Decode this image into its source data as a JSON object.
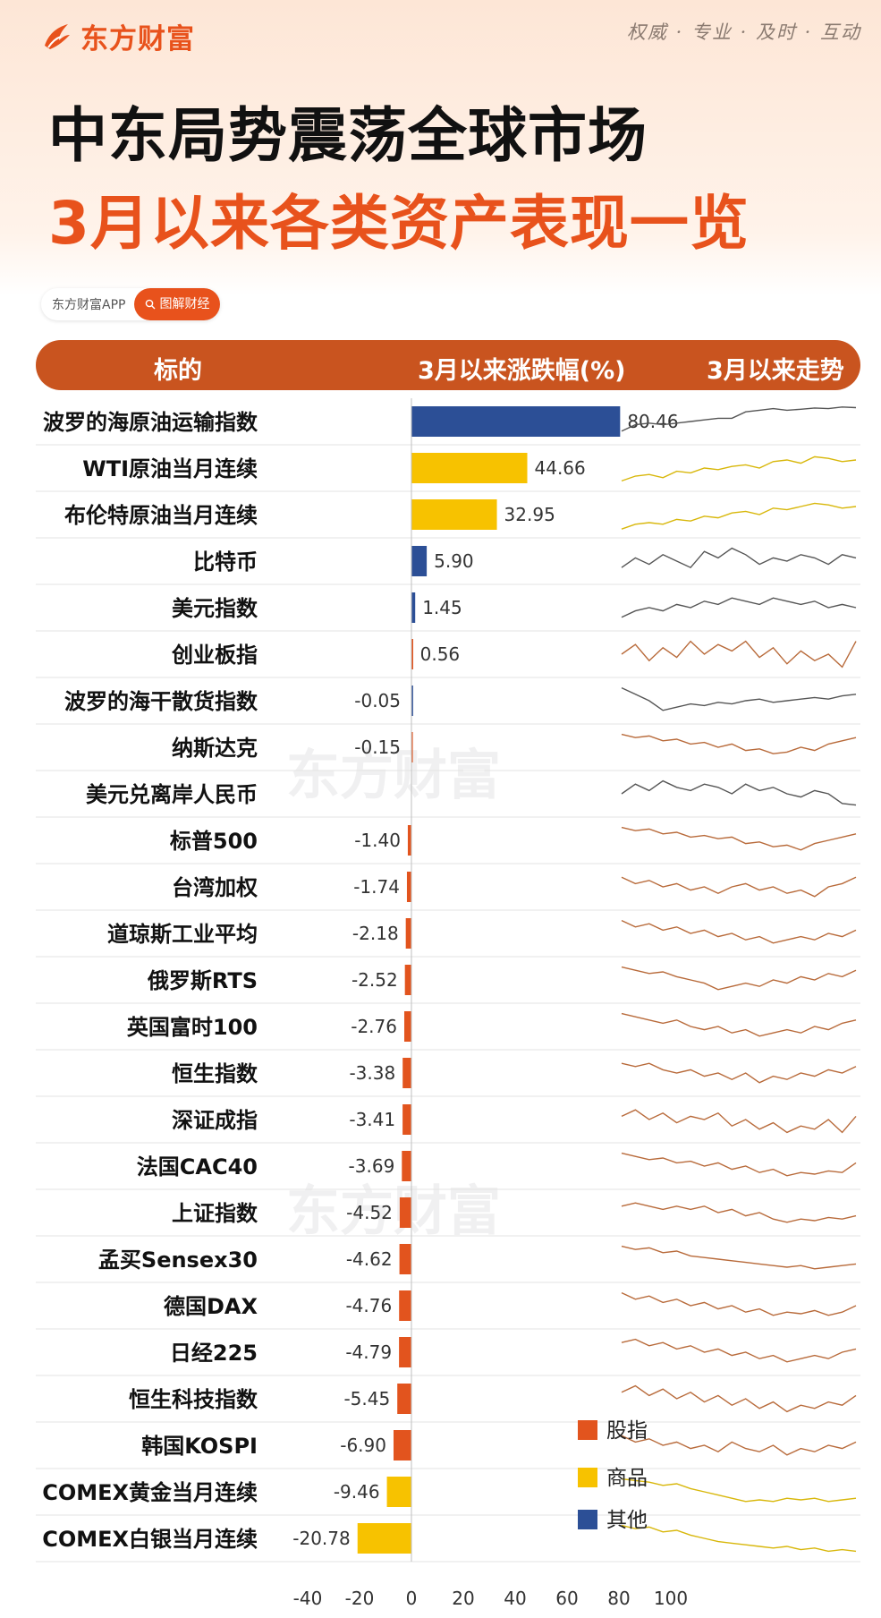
{
  "brand": {
    "name": "东方财富",
    "slogan": "权威 · 专业 · 及时 · 互动"
  },
  "title": {
    "line1": "中东局势震荡全球市场",
    "line2": "3月以来各类资产表现一览"
  },
  "tag": {
    "app": "东方财富APP",
    "pill": "图解财经"
  },
  "header": {
    "col1": "标的",
    "col2": "3月以来涨跌幅(%)",
    "col3": "3月以来走势"
  },
  "watermark": "东方财富",
  "colors": {
    "stock": "#e2541e",
    "commodity": "#f7c200",
    "other": "#2c4f96",
    "accent": "#e8521c"
  },
  "chart_data": {
    "type": "bar",
    "orientation": "horizontal",
    "xlim": [
      -40,
      100
    ],
    "xticks": [
      -40,
      -20,
      0,
      20,
      40,
      60,
      80,
      100
    ],
    "legend": {
      "position": "bottom-right",
      "items": [
        {
          "key": "stock",
          "label": "股指"
        },
        {
          "key": "commodity",
          "label": "商品"
        },
        {
          "key": "other",
          "label": "其他"
        }
      ]
    },
    "rows": [
      {
        "name": "波罗的海原油运输指数",
        "value": 80.46,
        "label": "80.46",
        "cat": "other",
        "trend": [
          0.2,
          0.4,
          0.45,
          0.4,
          0.45,
          0.5,
          0.55,
          0.6,
          0.6,
          0.8,
          0.85,
          0.9,
          0.85,
          0.88,
          0.92,
          0.9,
          0.95,
          0.93
        ]
      },
      {
        "name": "WTI原油当月连续",
        "value": 44.66,
        "label": "44.66",
        "cat": "commodity",
        "trend": [
          0.1,
          0.25,
          0.3,
          0.2,
          0.4,
          0.35,
          0.5,
          0.45,
          0.55,
          0.6,
          0.5,
          0.7,
          0.75,
          0.65,
          0.85,
          0.8,
          0.7,
          0.75
        ]
      },
      {
        "name": "布伦特原油当月连续",
        "value": 32.95,
        "label": "32.95",
        "cat": "commodity",
        "trend": [
          0.05,
          0.2,
          0.25,
          0.2,
          0.35,
          0.3,
          0.45,
          0.4,
          0.55,
          0.6,
          0.5,
          0.7,
          0.65,
          0.75,
          0.85,
          0.8,
          0.7,
          0.75
        ]
      },
      {
        "name": "比特币",
        "value": 5.9,
        "label": "5.90",
        "cat": "other",
        "trend": [
          0.3,
          0.6,
          0.4,
          0.7,
          0.5,
          0.3,
          0.8,
          0.6,
          0.9,
          0.7,
          0.4,
          0.6,
          0.5,
          0.7,
          0.6,
          0.4,
          0.7,
          0.6
        ]
      },
      {
        "name": "美元指数",
        "value": 1.45,
        "label": "1.45",
        "cat": "other",
        "trend": [
          0.2,
          0.4,
          0.5,
          0.4,
          0.6,
          0.5,
          0.7,
          0.6,
          0.8,
          0.7,
          0.6,
          0.8,
          0.7,
          0.6,
          0.7,
          0.5,
          0.6,
          0.5
        ]
      },
      {
        "name": "创业板指",
        "value": 0.56,
        "label": "0.56",
        "cat": "stock",
        "trend": [
          0.5,
          0.8,
          0.3,
          0.7,
          0.4,
          0.9,
          0.5,
          0.8,
          0.6,
          0.9,
          0.4,
          0.7,
          0.2,
          0.6,
          0.3,
          0.5,
          0.1,
          0.9
        ]
      },
      {
        "name": "波罗的海干散货指数",
        "value": -0.05,
        "label": "-0.05",
        "cat": "other",
        "trend": [
          0.9,
          0.7,
          0.5,
          0.2,
          0.3,
          0.4,
          0.35,
          0.45,
          0.4,
          0.5,
          0.55,
          0.45,
          0.5,
          0.55,
          0.6,
          0.55,
          0.65,
          0.7
        ]
      },
      {
        "name": "纳斯达克",
        "value": -0.15,
        "label": "-0.15",
        "cat": "stock",
        "trend": [
          0.9,
          0.8,
          0.85,
          0.7,
          0.75,
          0.6,
          0.65,
          0.5,
          0.6,
          0.4,
          0.45,
          0.3,
          0.35,
          0.5,
          0.4,
          0.6,
          0.7,
          0.8
        ]
      },
      {
        "name": "美元兑离岸人民币",
        "value": 0.0,
        "label": "",
        "cat": "other",
        "trend": [
          0.5,
          0.8,
          0.6,
          0.9,
          0.7,
          0.6,
          0.8,
          0.7,
          0.5,
          0.8,
          0.6,
          0.7,
          0.5,
          0.4,
          0.6,
          0.5,
          0.2,
          0.15
        ]
      },
      {
        "name": "标普500",
        "value": -1.4,
        "label": "-1.40",
        "cat": "stock",
        "trend": [
          0.9,
          0.8,
          0.85,
          0.7,
          0.75,
          0.6,
          0.65,
          0.55,
          0.6,
          0.4,
          0.45,
          0.3,
          0.35,
          0.2,
          0.4,
          0.5,
          0.6,
          0.7
        ]
      },
      {
        "name": "台湾加权",
        "value": -1.74,
        "label": "-1.74",
        "cat": "stock",
        "trend": [
          0.8,
          0.6,
          0.7,
          0.5,
          0.6,
          0.4,
          0.5,
          0.3,
          0.5,
          0.6,
          0.4,
          0.5,
          0.3,
          0.4,
          0.2,
          0.5,
          0.6,
          0.8
        ]
      },
      {
        "name": "道琼斯工业平均",
        "value": -2.18,
        "label": "-2.18",
        "cat": "stock",
        "trend": [
          0.9,
          0.7,
          0.8,
          0.6,
          0.7,
          0.5,
          0.6,
          0.4,
          0.5,
          0.3,
          0.4,
          0.2,
          0.3,
          0.4,
          0.3,
          0.5,
          0.4,
          0.6
        ]
      },
      {
        "name": "俄罗斯RTS",
        "value": -2.52,
        "label": "-2.52",
        "cat": "stock",
        "trend": [
          0.9,
          0.8,
          0.7,
          0.75,
          0.6,
          0.5,
          0.4,
          0.2,
          0.3,
          0.4,
          0.3,
          0.5,
          0.4,
          0.6,
          0.5,
          0.7,
          0.6,
          0.8
        ]
      },
      {
        "name": "英国富时100",
        "value": -2.76,
        "label": "-2.76",
        "cat": "stock",
        "trend": [
          0.9,
          0.8,
          0.7,
          0.6,
          0.7,
          0.5,
          0.4,
          0.5,
          0.3,
          0.4,
          0.2,
          0.3,
          0.4,
          0.3,
          0.5,
          0.4,
          0.6,
          0.7
        ]
      },
      {
        "name": "恒生指数",
        "value": -3.38,
        "label": "-3.38",
        "cat": "stock",
        "trend": [
          0.8,
          0.7,
          0.8,
          0.6,
          0.5,
          0.6,
          0.4,
          0.5,
          0.3,
          0.5,
          0.2,
          0.4,
          0.3,
          0.5,
          0.4,
          0.6,
          0.5,
          0.7
        ]
      },
      {
        "name": "深证成指",
        "value": -3.41,
        "label": "-3.41",
        "cat": "stock",
        "trend": [
          0.6,
          0.8,
          0.5,
          0.7,
          0.4,
          0.6,
          0.5,
          0.7,
          0.3,
          0.5,
          0.2,
          0.4,
          0.1,
          0.3,
          0.2,
          0.5,
          0.1,
          0.6
        ]
      },
      {
        "name": "法国CAC40",
        "value": -3.69,
        "label": "-3.69",
        "cat": "stock",
        "trend": [
          0.9,
          0.8,
          0.7,
          0.75,
          0.6,
          0.65,
          0.5,
          0.6,
          0.4,
          0.5,
          0.3,
          0.4,
          0.2,
          0.3,
          0.25,
          0.35,
          0.3,
          0.6
        ]
      },
      {
        "name": "上证指数",
        "value": -4.52,
        "label": "-4.52",
        "cat": "stock",
        "trend": [
          0.7,
          0.8,
          0.7,
          0.6,
          0.7,
          0.6,
          0.7,
          0.5,
          0.6,
          0.4,
          0.5,
          0.3,
          0.2,
          0.3,
          0.25,
          0.35,
          0.3,
          0.4
        ]
      },
      {
        "name": "孟买Sensex30",
        "value": -4.62,
        "label": "-4.62",
        "cat": "stock",
        "trend": [
          0.9,
          0.8,
          0.85,
          0.7,
          0.75,
          0.6,
          0.55,
          0.5,
          0.45,
          0.4,
          0.35,
          0.3,
          0.25,
          0.3,
          0.2,
          0.25,
          0.3,
          0.35
        ]
      },
      {
        "name": "德国DAX",
        "value": -4.76,
        "label": "-4.76",
        "cat": "stock",
        "trend": [
          0.9,
          0.7,
          0.8,
          0.6,
          0.7,
          0.5,
          0.6,
          0.4,
          0.5,
          0.3,
          0.4,
          0.2,
          0.3,
          0.25,
          0.35,
          0.2,
          0.3,
          0.5
        ]
      },
      {
        "name": "日经225",
        "value": -4.79,
        "label": "-4.79",
        "cat": "stock",
        "trend": [
          0.8,
          0.9,
          0.7,
          0.8,
          0.6,
          0.7,
          0.5,
          0.6,
          0.4,
          0.5,
          0.3,
          0.4,
          0.2,
          0.3,
          0.4,
          0.3,
          0.5,
          0.6
        ]
      },
      {
        "name": "恒生科技指数",
        "value": -5.45,
        "label": "-5.45",
        "cat": "stock",
        "trend": [
          0.7,
          0.9,
          0.6,
          0.8,
          0.5,
          0.7,
          0.4,
          0.6,
          0.3,
          0.5,
          0.2,
          0.4,
          0.1,
          0.3,
          0.2,
          0.4,
          0.3,
          0.6
        ]
      },
      {
        "name": "韩国KOSPI",
        "value": -6.9,
        "label": "-6.90",
        "cat": "stock",
        "trend": [
          0.8,
          0.6,
          0.7,
          0.5,
          0.6,
          0.4,
          0.5,
          0.3,
          0.6,
          0.4,
          0.3,
          0.5,
          0.2,
          0.4,
          0.3,
          0.5,
          0.4,
          0.6
        ]
      },
      {
        "name": "COMEX黄金当月连续",
        "value": -9.46,
        "label": "-9.46",
        "cat": "commodity",
        "trend": [
          0.9,
          0.85,
          0.8,
          0.7,
          0.75,
          0.6,
          0.5,
          0.4,
          0.3,
          0.2,
          0.25,
          0.2,
          0.3,
          0.25,
          0.3,
          0.2,
          0.25,
          0.3
        ]
      },
      {
        "name": "COMEX白银当月连续",
        "value": -20.78,
        "label": "-20.78",
        "cat": "commodity",
        "trend": [
          0.9,
          0.8,
          0.85,
          0.7,
          0.75,
          0.6,
          0.5,
          0.4,
          0.35,
          0.3,
          0.25,
          0.2,
          0.25,
          0.15,
          0.2,
          0.1,
          0.15,
          0.1
        ]
      }
    ]
  }
}
